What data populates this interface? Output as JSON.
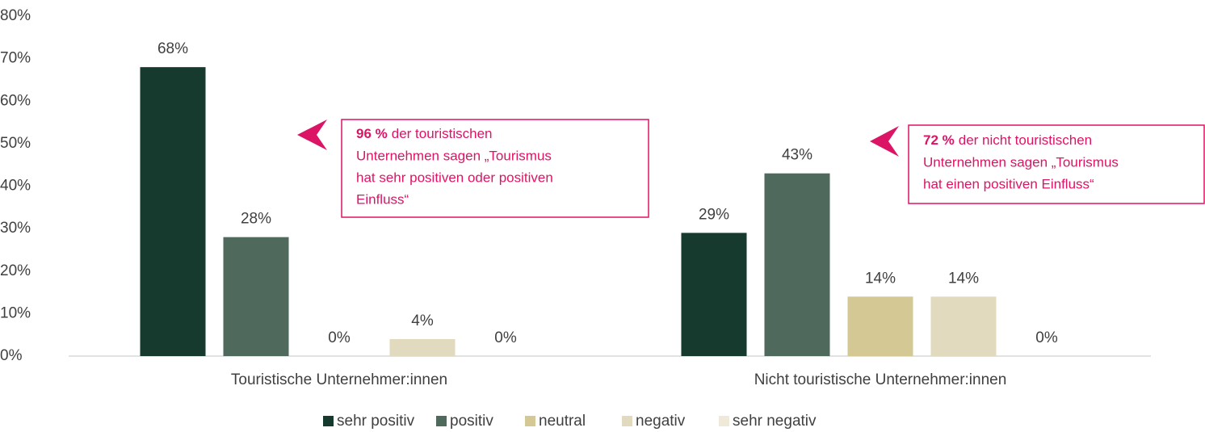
{
  "chart_data": {
    "type": "bar",
    "categories": [
      "Touristische Unternehmer:innen",
      "Nicht touristische Unternehmer:innen"
    ],
    "series": [
      {
        "name": "sehr positiv",
        "color": "#173a2e",
        "values": [
          68,
          29
        ],
        "value_labels": [
          "68%",
          "29%"
        ]
      },
      {
        "name": "positiv",
        "color": "#4f695d",
        "values": [
          28,
          43
        ],
        "value_labels": [
          "28%",
          "43%"
        ]
      },
      {
        "name": "neutral",
        "color": "#d4c894",
        "values": [
          0,
          14
        ],
        "value_labels": [
          "0%",
          "14%"
        ]
      },
      {
        "name": "negativ",
        "color": "#e2dabe",
        "values": [
          4,
          14
        ],
        "value_labels": [
          "4%",
          "14%"
        ]
      },
      {
        "name": "sehr negativ",
        "color": "#efe9d9",
        "values": [
          0,
          0
        ],
        "value_labels": [
          "0%",
          "0%"
        ]
      }
    ],
    "ylim": [
      0,
      80
    ],
    "yticks": [
      {
        "value": 0,
        "label": "0%"
      },
      {
        "value": 10,
        "label": "10%"
      },
      {
        "value": 20,
        "label": "20%"
      },
      {
        "value": 30,
        "label": "30%"
      },
      {
        "value": 40,
        "label": "40%"
      },
      {
        "value": 50,
        "label": "50%"
      },
      {
        "value": 60,
        "label": "60%"
      },
      {
        "value": 70,
        "label": "70%"
      },
      {
        "value": 80,
        "label": "80%"
      }
    ],
    "grid": false,
    "legend": "bottom",
    "annotations": [
      {
        "bold": "96 %",
        "lines": [
          "der touristischen",
          "Unternehmen sagen „Tourismus",
          "hat sehr positiven oder positiven",
          "Einfluss“"
        ]
      },
      {
        "bold": "72 %",
        "lines": [
          "der nicht touristischen",
          "Unternehmen sagen „Tourismus",
          "hat einen positiven Einfluss“"
        ]
      }
    ]
  }
}
